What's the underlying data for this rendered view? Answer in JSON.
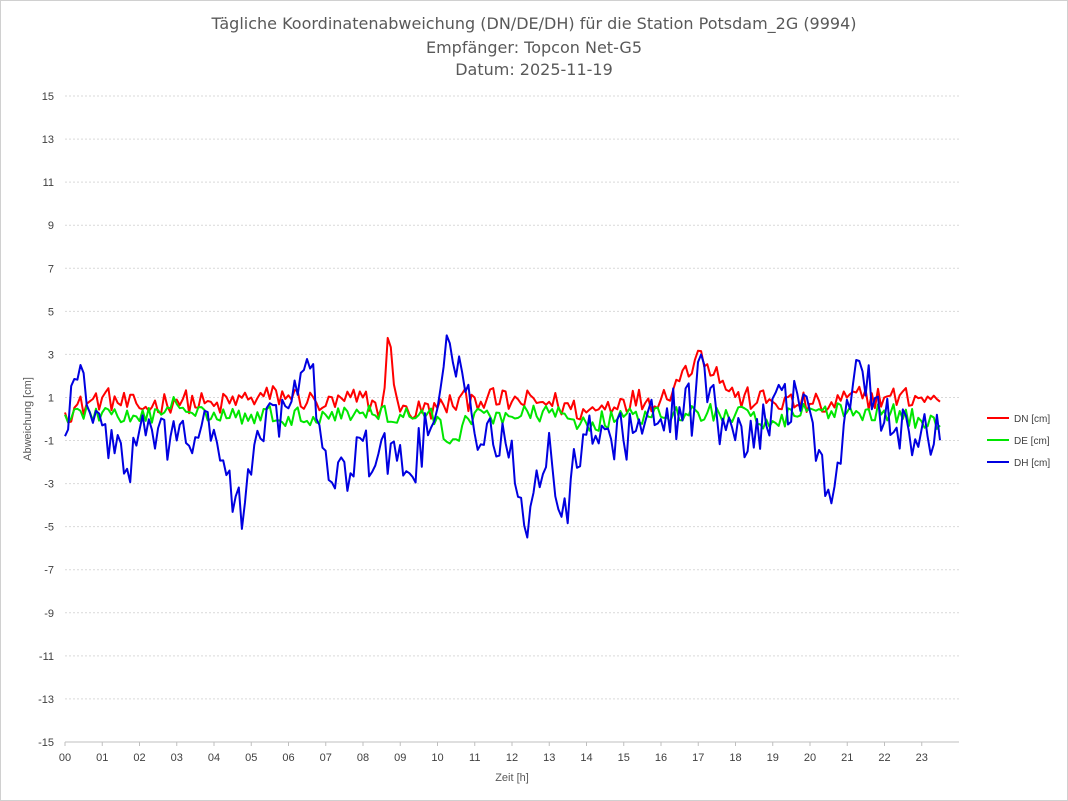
{
  "chart_data": {
    "type": "line",
    "title_lines": [
      "Tägliche Koordinatenabweichung (DN/DE/DH) für die Station Potsdam_2G (9994)",
      "Empfänger: Topcon Net-G5",
      "Datum: 2025-11-19"
    ],
    "xlabel": "Zeit [h]",
    "ylabel": "Abweichung [cm]",
    "xlim": [
      0,
      24
    ],
    "ylim": [
      -15,
      15
    ],
    "grid": true,
    "legend_position": "right",
    "x_ticks": [
      "00",
      "01",
      "02",
      "03",
      "04",
      "05",
      "06",
      "07",
      "08",
      "09",
      "10",
      "11",
      "12",
      "13",
      "14",
      "15",
      "16",
      "17",
      "18",
      "19",
      "20",
      "21",
      "22",
      "23"
    ],
    "y_ticks": [
      "15",
      "13",
      "11",
      "9",
      "7",
      "5",
      "3",
      "1",
      "-1",
      "-3",
      "-5",
      "-7",
      "-9",
      "-11",
      "-13",
      "-15"
    ],
    "sample_interval_h": 0.0833,
    "series": [
      {
        "name": "DN [cm]",
        "color": "#ff0000",
        "x": [
          0,
          1,
          2,
          3,
          4,
          5,
          6,
          7,
          8,
          8.55,
          8.65,
          9,
          10,
          11,
          12,
          13,
          14,
          15,
          16,
          16.9,
          17,
          18,
          19,
          20,
          20.5,
          21,
          22,
          23,
          23.5
        ],
        "y": [
          0.3,
          1.0,
          0.5,
          0.9,
          0.6,
          1.0,
          1.1,
          0.6,
          1.0,
          0.4,
          3.9,
          0.3,
          0.5,
          1.0,
          0.8,
          0.8,
          0.3,
          0.9,
          0.9,
          2.7,
          3.2,
          1.0,
          0.8,
          0.7,
          0.5,
          1.0,
          1.0,
          1.0,
          0.8
        ]
      },
      {
        "name": "DE [cm]",
        "color": "#00e600",
        "x": [
          0,
          1,
          2,
          3,
          4,
          5,
          6,
          7,
          8,
          9,
          10,
          10.3,
          11,
          12,
          13,
          14,
          15,
          16,
          17,
          18,
          19,
          20,
          21,
          22,
          23,
          23.5
        ],
        "y": [
          0.2,
          0.3,
          -0.1,
          0.7,
          0.3,
          0.2,
          0.1,
          0.2,
          0.3,
          0.2,
          0.1,
          -1.2,
          0.3,
          0.1,
          0.3,
          -0.2,
          0.1,
          0.1,
          0.3,
          0.2,
          -0.1,
          0.5,
          0.3,
          0.4,
          -0.1,
          -0.3
        ]
      },
      {
        "name": "DH [cm]",
        "color": "#0000e0",
        "x": [
          0,
          0.2,
          1,
          1.6,
          2,
          3,
          4,
          4.3,
          4.8,
          5.1,
          6,
          6.6,
          7,
          7.6,
          8,
          8.3,
          9,
          9.2,
          10,
          10.3,
          11,
          11.5,
          12,
          12.4,
          13,
          13.3,
          14,
          15,
          16,
          16.9,
          17,
          17.5,
          18,
          18.8,
          19,
          20,
          20.6,
          21,
          21.3,
          22,
          22.8,
          23,
          23.5
        ],
        "y": [
          -0.8,
          2.0,
          -0.3,
          -2.6,
          -0.5,
          -1.0,
          -0.5,
          -2.5,
          -4.2,
          -1.0,
          0.5,
          2.4,
          -1.5,
          -3.4,
          -1.0,
          -2.2,
          -1.2,
          -2.7,
          0.5,
          3.7,
          -0.7,
          -1.2,
          -1.0,
          -5.6,
          -0.6,
          -4.7,
          -0.7,
          -1.0,
          0.0,
          0.5,
          2.8,
          0.2,
          -1.0,
          -0.5,
          1.0,
          0.4,
          -4.1,
          1.0,
          2.8,
          -0.2,
          -1.0,
          -0.5,
          -1.0
        ]
      }
    ]
  }
}
